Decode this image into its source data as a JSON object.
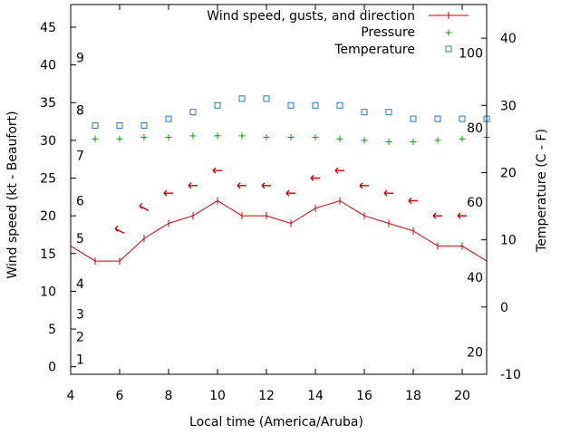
{
  "chart_data": {
    "type": "line",
    "xlabel": "Local time (America/Aruba)",
    "ylabel_left": "Wind speed (kt - Beaufort)",
    "ylabel_right": "Temperature (C - F)",
    "xlim": [
      4,
      21
    ],
    "ylim_left": [
      -1,
      48
    ],
    "ylim_right": [
      -10,
      45
    ],
    "x_ticks": [
      4,
      6,
      8,
      10,
      12,
      14,
      16,
      18,
      20
    ],
    "y_left_ticks": [
      0,
      5,
      10,
      15,
      20,
      25,
      30,
      35,
      40,
      45
    ],
    "y_right_ticks": [
      -10,
      0,
      10,
      20,
      30,
      40
    ],
    "beaufort_labels": [
      {
        "label": "1",
        "kt": 1
      },
      {
        "label": "2",
        "kt": 4
      },
      {
        "label": "3",
        "kt": 7
      },
      {
        "label": "4",
        "kt": 11
      },
      {
        "label": "5",
        "kt": 17
      },
      {
        "label": "6",
        "kt": 22
      },
      {
        "label": "7",
        "kt": 28
      },
      {
        "label": "8",
        "kt": 34
      },
      {
        "label": "9",
        "kt": 41
      }
    ],
    "fahrenheit_labels": [
      {
        "label": "20",
        "celsius": -6.7
      },
      {
        "label": "40",
        "celsius": 4.4
      },
      {
        "label": "60",
        "celsius": 15.6
      },
      {
        "label": "80",
        "celsius": 26.7
      },
      {
        "label": "100",
        "celsius": 37.8
      }
    ],
    "legend_position": "top-right",
    "series": [
      {
        "name": "Wind speed, gusts, and direction",
        "axis": "left",
        "color": "#cc0000",
        "style": "line-with-plus-markers",
        "x": [
          4,
          5,
          6,
          7,
          8,
          9,
          10,
          11,
          12,
          13,
          14,
          15,
          16,
          17,
          18,
          19,
          20,
          21
        ],
        "values": [
          16,
          14,
          14,
          17,
          19,
          20,
          22,
          20,
          20,
          19,
          21,
          22,
          20,
          19,
          18,
          16,
          16,
          14
        ]
      },
      {
        "name": "Pressure",
        "axis": "left",
        "color": "#00a000",
        "style": "plus-markers",
        "x": [
          5,
          6,
          7,
          8,
          9,
          10,
          11,
          12,
          13,
          14,
          15,
          16,
          17,
          18,
          19,
          20,
          21
        ],
        "values": [
          30.2,
          30.2,
          30.4,
          30.4,
          30.6,
          30.6,
          30.6,
          30.4,
          30.4,
          30.4,
          30.2,
          30.0,
          29.8,
          29.8,
          30.0,
          30.2,
          30.4
        ]
      },
      {
        "name": "Temperature",
        "axis": "right",
        "color": "#1e78c8",
        "style": "square-markers",
        "x": [
          5,
          6,
          7,
          8,
          9,
          10,
          11,
          12,
          13,
          14,
          15,
          16,
          17,
          18,
          19,
          20,
          21
        ],
        "values": [
          27,
          27,
          27,
          28,
          29,
          30,
          31,
          31,
          30,
          30,
          30,
          29,
          29,
          28,
          28,
          28,
          28
        ]
      }
    ],
    "wind_direction_arrows": {
      "color": "#cc0000",
      "x": [
        6,
        7,
        8,
        9,
        10,
        11,
        12,
        13,
        14,
        15,
        16,
        17,
        18,
        19,
        20
      ],
      "values": [
        18,
        21,
        23,
        24,
        26,
        24,
        24,
        23,
        25,
        26,
        24,
        23,
        22,
        20,
        20
      ],
      "direction": [
        "ESE",
        "ESE",
        "E",
        "E",
        "E",
        "E",
        "E",
        "E",
        "E",
        "E",
        "E",
        "E",
        "E",
        "E",
        "E"
      ]
    }
  }
}
